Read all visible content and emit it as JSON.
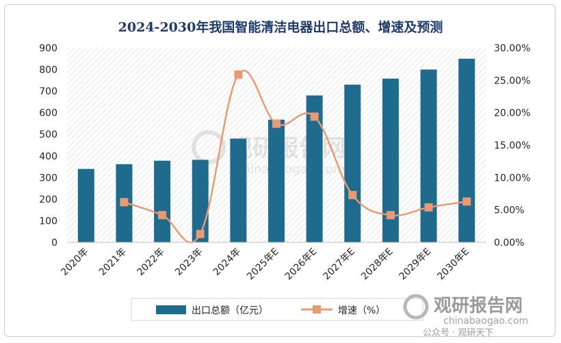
{
  "chart_data": {
    "type": "bar+line",
    "title": "2024-2030年我国智能清洁电器出口总额、增速及预测",
    "categories": [
      "2020年",
      "2021年",
      "2022年",
      "2023年",
      "2024年",
      "2025年E",
      "2026年E",
      "2027年E",
      "2028年E",
      "2029年E",
      "2030年E"
    ],
    "series": [
      {
        "name": "出口总额（亿元）",
        "kind": "bar",
        "axis": "left",
        "values": [
          340,
          362,
          378,
          382,
          480,
          568,
          680,
          730,
          758,
          800,
          850
        ]
      },
      {
        "name": "增速（%）",
        "kind": "line",
        "axis": "right",
        "values": [
          null,
          6.2,
          4.2,
          1.3,
          25.9,
          18.3,
          19.4,
          7.3,
          4.2,
          5.4,
          6.3
        ]
      }
    ],
    "left_ticks": [
      "0",
      "100",
      "200",
      "300",
      "400",
      "500",
      "600",
      "700",
      "800",
      "900"
    ],
    "right_ticks": [
      "0.00%",
      "5.00%",
      "10.00%",
      "15.00%",
      "20.00%",
      "25.00%",
      "30.00%"
    ],
    "ylim_left": [
      0,
      900
    ],
    "ylim_right": [
      0,
      30
    ],
    "legend_position": "bottom",
    "colors": {
      "bar": "#1f6b8e",
      "line": "#e99a72",
      "title": "#1e3a6e"
    }
  },
  "watermark": {
    "center_brand": "观研报告网",
    "center_url": "chinabaogao.com",
    "corner_brand": "观研报告网",
    "corner_url": "chinabaogao.com",
    "corner_account": "公众号 · 观研天下"
  }
}
